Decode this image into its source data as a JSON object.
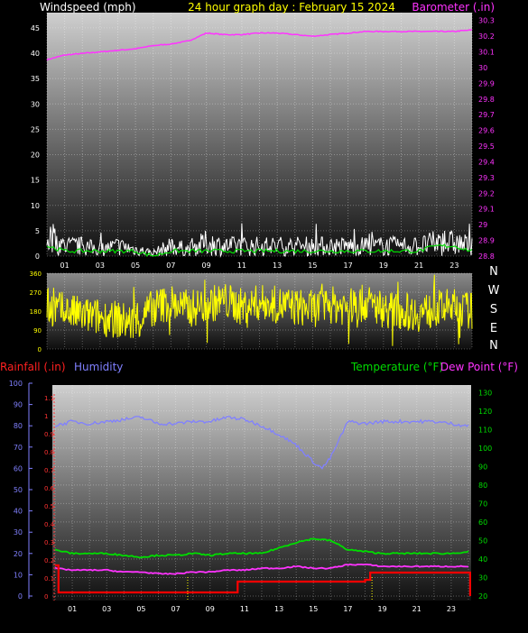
{
  "chart_data": [
    {
      "type": "line",
      "title": "24 hour graph day : February 15 2024",
      "left_axis_label": "Windspeed (mph)",
      "right_axis_label": "Barometer (.in)",
      "xticks": [
        "01",
        "03",
        "05",
        "07",
        "09",
        "11",
        "13",
        "15",
        "17",
        "19",
        "21",
        "23"
      ],
      "left_ticks": [
        "0",
        "5",
        "10",
        "15",
        "20",
        "25",
        "30",
        "35",
        "40",
        "45"
      ],
      "right_ticks": [
        "28.8",
        "28.9",
        "29",
        "29.1",
        "29.2",
        "29.3",
        "29.4",
        "29.5",
        "29.6",
        "29.7",
        "29.8",
        "29.9",
        "30",
        "30.1",
        "30.2",
        "30.3"
      ],
      "left_ylim": [
        0,
        48
      ],
      "right_ylim": [
        28.8,
        30.35
      ],
      "colors": {
        "wind_gust": "#ffffff",
        "wind_avg": "#00dd00",
        "barometer": "#ff33ff",
        "title": "#ffff00",
        "left_label": "#ffffff",
        "right_label": "#ff33ff"
      },
      "series": [
        {
          "id": "barometer",
          "axis": "right",
          "x": [
            0,
            1,
            2,
            3,
            4,
            5,
            6,
            7,
            8,
            9,
            10,
            11,
            12,
            13,
            14,
            15,
            16,
            17,
            18,
            19,
            20,
            21,
            22,
            23,
            24
          ],
          "values": [
            30.05,
            30.08,
            30.09,
            30.1,
            30.11,
            30.12,
            30.14,
            30.15,
            30.17,
            30.22,
            30.21,
            30.21,
            30.22,
            30.22,
            30.21,
            30.2,
            30.21,
            30.22,
            30.23,
            30.23,
            30.23,
            30.23,
            30.23,
            30.23,
            30.24
          ]
        },
        {
          "id": "wind_gust",
          "axis": "left",
          "x": [
            0,
            1,
            2,
            3,
            4,
            5,
            6,
            7,
            8,
            9,
            10,
            11,
            12,
            13,
            14,
            15,
            16,
            17,
            18,
            19,
            20,
            21,
            22,
            23,
            24
          ],
          "values": [
            6,
            3,
            3,
            2,
            3,
            2,
            1,
            3,
            2,
            4,
            3,
            3,
            3,
            3,
            3,
            3,
            3,
            3,
            3,
            3,
            3,
            3,
            4,
            4,
            3
          ]
        },
        {
          "id": "wind_avg",
          "axis": "left",
          "x": [
            0,
            1,
            2,
            3,
            4,
            5,
            6,
            7,
            8,
            9,
            10,
            11,
            12,
            13,
            14,
            15,
            16,
            17,
            18,
            19,
            20,
            21,
            22,
            23,
            24
          ],
          "values": [
            2,
            1,
            1,
            1,
            1,
            1,
            0,
            1,
            1,
            1,
            1,
            1,
            1,
            1,
            1,
            1,
            1,
            1,
            1,
            1,
            1,
            1,
            2,
            2,
            1
          ]
        }
      ]
    },
    {
      "type": "line",
      "title": "",
      "left_ticks": [
        "0",
        "90",
        "180",
        "270",
        "360"
      ],
      "direction_labels": [
        "N",
        "W",
        "S",
        "E",
        "N"
      ],
      "ylim": [
        0,
        360
      ],
      "colors": {
        "direction": "#ffff00"
      },
      "series": [
        {
          "id": "wind_direction",
          "x": [
            0,
            1,
            2,
            3,
            4,
            5,
            6,
            7,
            8,
            9,
            10,
            11,
            12,
            13,
            14,
            15,
            16,
            17,
            18,
            19,
            20,
            21,
            22,
            23,
            24
          ],
          "values": [
            200,
            180,
            160,
            150,
            140,
            120,
            200,
            220,
            190,
            210,
            230,
            200,
            220,
            210,
            200,
            190,
            210,
            200,
            220,
            190,
            180,
            170,
            190,
            200,
            180
          ]
        }
      ]
    },
    {
      "type": "line",
      "title": "",
      "rain_axis_label": "Rainfall (.in)",
      "humidity_axis_label": "Humidity",
      "temperature_axis_label": "Temperature (°F)",
      "dewpoint_axis_label": "Dew Point (°F)",
      "xticks": [
        "01",
        "03",
        "05",
        "07",
        "09",
        "11",
        "13",
        "15",
        "17",
        "19",
        "21",
        "23"
      ],
      "humidity_ticks": [
        "0",
        "10",
        "20",
        "30",
        "40",
        "50",
        "60",
        "70",
        "80",
        "90",
        "100"
      ],
      "rain_ticks": [
        "0",
        "0.1",
        "0.2",
        "0.3",
        "0.4",
        "0.5",
        "0.6",
        "0.7",
        "0.8",
        "0.9",
        "1",
        "1.1"
      ],
      "temp_ticks": [
        "20",
        "30",
        "40",
        "50",
        "60",
        "70",
        "80",
        "90",
        "100",
        "110",
        "120",
        "130"
      ],
      "humidity_ylim": [
        0,
        100
      ],
      "rain_ylim": [
        0,
        1.18
      ],
      "temp_ylim": [
        20,
        135
      ],
      "colors": {
        "rain": "#ff0000",
        "humidity": "#8080ff",
        "temperature": "#00dd00",
        "dewpoint": "#ff33ff",
        "rain_label": "#ff2020",
        "humidity_label": "#8080ff",
        "temp_label": "#00dd00",
        "dew_label": "#ff33ff"
      },
      "series": [
        {
          "id": "humidity",
          "axis": "humidity",
          "x": [
            0,
            1,
            2,
            3,
            4,
            5,
            6,
            7,
            8,
            9,
            10,
            11,
            12,
            13,
            14,
            15,
            15.5,
            16,
            17,
            18,
            19,
            20,
            21,
            22,
            23,
            24
          ],
          "values": [
            80,
            82,
            81,
            82,
            83,
            84,
            81,
            81,
            82,
            82,
            84,
            83,
            80,
            76,
            71,
            63,
            60,
            65,
            82,
            81,
            82,
            82,
            82,
            82,
            81,
            80
          ]
        },
        {
          "id": "temperature",
          "axis": "temp",
          "x": [
            0,
            1,
            2,
            3,
            4,
            5,
            6,
            7,
            8,
            9,
            10,
            11,
            12,
            13,
            14,
            15,
            16,
            17,
            18,
            19,
            20,
            21,
            22,
            23,
            24
          ],
          "values": [
            45,
            43,
            43,
            43,
            42,
            41,
            42,
            42,
            43,
            42,
            43,
            43,
            43,
            46,
            49,
            51,
            50,
            45,
            44,
            43,
            43,
            43,
            43,
            43,
            44
          ]
        },
        {
          "id": "dewpoint",
          "axis": "temp",
          "x": [
            0,
            1,
            2,
            3,
            4,
            5,
            6,
            7,
            8,
            9,
            10,
            11,
            12,
            13,
            14,
            15,
            16,
            17,
            18,
            19,
            20,
            21,
            22,
            23,
            24
          ],
          "values": [
            35,
            34,
            34,
            34,
            33,
            33,
            32,
            32,
            33,
            33,
            34,
            34,
            35,
            35,
            36,
            35,
            35,
            37,
            37,
            36,
            36,
            36,
            36,
            36,
            36
          ]
        },
        {
          "id": "rainfall",
          "axis": "rain",
          "x": [
            0,
            0.2,
            9.8,
            10.6,
            17,
            18,
            18.3,
            24,
            24.1
          ],
          "values": [
            0.17,
            0.02,
            0.02,
            0.08,
            0.08,
            0.09,
            0.13,
            0.13,
            0
          ]
        }
      ]
    }
  ]
}
